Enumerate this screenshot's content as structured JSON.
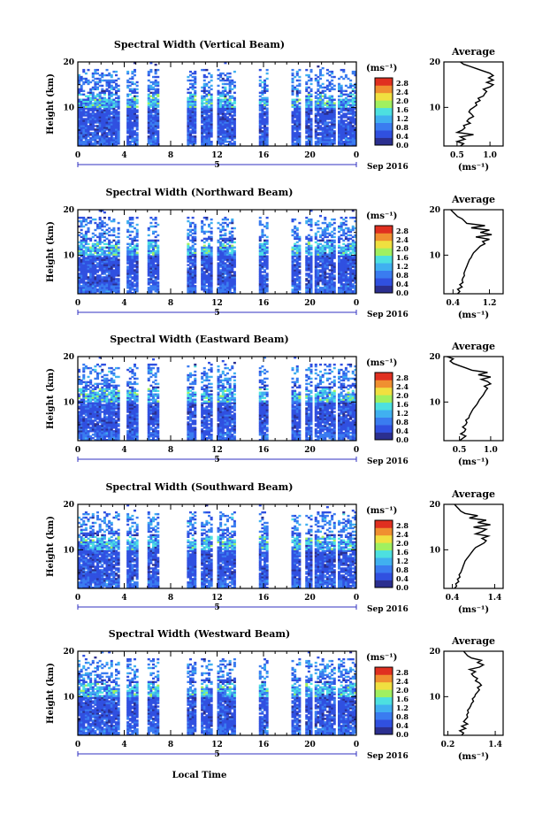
{
  "chart_data": {
    "type": "heatmap",
    "xlabel": "Local Time",
    "date_label": "Sep 2016",
    "day_label": "5",
    "ylabel": "Height (km)",
    "colorbar_unit": "(ms⁻¹)",
    "colorbar_ticks": [
      "2.8",
      "2.4",
      "2.0",
      "1.6",
      "1.2",
      "0.8",
      "0.4",
      "0.0"
    ],
    "x_ticks": [
      "0",
      "4",
      "8",
      "12",
      "16",
      "20",
      "0"
    ],
    "x_range_hours": [
      0,
      24
    ],
    "y_ticks": [
      "20",
      "10"
    ],
    "y_range_km": [
      1.5,
      20
    ],
    "data_gaps_hours": [
      [
        3.6,
        4.2
      ],
      [
        5.2,
        6.0
      ],
      [
        7.1,
        9.5
      ],
      [
        10.2,
        10.6
      ],
      [
        11.6,
        12.1
      ],
      [
        13.6,
        15.6
      ],
      [
        16.4,
        18.4
      ],
      [
        19.2,
        19.6
      ],
      [
        20.2,
        20.5
      ],
      [
        22.1,
        22.4
      ]
    ],
    "panels": [
      {
        "title": "Spectral Width (Vertical Beam)",
        "avg_title": "Average",
        "avg_xlabel": "(ms⁻¹)",
        "avg_x_ticks": [
          "0.5",
          "1.0"
        ],
        "avg_xlim": [
          0.3,
          1.2
        ],
        "avg_profile": {
          "height_km": [
            1.5,
            2,
            2.5,
            3,
            3.5,
            4,
            4.5,
            5,
            5.5,
            6,
            6.5,
            7,
            7.5,
            8,
            8.5,
            9,
            9.5,
            10,
            10.5,
            11,
            11.5,
            12,
            12.5,
            13,
            13.5,
            14,
            14.5,
            15,
            15.5,
            16,
            16.5,
            17,
            17.5,
            18,
            18.5,
            19,
            19.5,
            20
          ],
          "width_ms": [
            0.55,
            0.6,
            0.5,
            0.62,
            0.55,
            0.75,
            0.5,
            0.58,
            0.62,
            0.6,
            0.7,
            0.65,
            0.68,
            0.75,
            0.72,
            0.68,
            0.7,
            0.75,
            0.8,
            0.78,
            0.85,
            0.82,
            0.9,
            0.92,
            0.95,
            0.9,
            1.0,
            1.05,
            0.95,
            1.05,
            0.98,
            1.05,
            1.0,
            0.9,
            0.8,
            0.7,
            0.6,
            0.55
          ]
        }
      },
      {
        "title": "Spectral Width (Northward Beam)",
        "avg_title": "Average",
        "avg_xlabel": "(ms⁻¹)",
        "avg_x_ticks": [
          "0.4",
          "1.2"
        ],
        "avg_xlim": [
          0.2,
          1.5
        ],
        "avg_profile": {
          "height_km": [
            1.5,
            2,
            2.5,
            3,
            3.5,
            4,
            4.5,
            5,
            5.5,
            6,
            6.5,
            7,
            7.5,
            8,
            8.5,
            9,
            9.5,
            10,
            10.5,
            11,
            11.5,
            12,
            12.5,
            13,
            13.5,
            14,
            14.5,
            15,
            15.5,
            16,
            16.5,
            17,
            17.5,
            18,
            18.5,
            19,
            19.5,
            20
          ],
          "width_ms": [
            0.5,
            0.55,
            0.5,
            0.6,
            0.55,
            0.62,
            0.6,
            0.62,
            0.65,
            0.64,
            0.66,
            0.68,
            0.7,
            0.72,
            0.74,
            0.76,
            0.8,
            0.82,
            0.85,
            0.9,
            0.95,
            1.0,
            1.1,
            1.05,
            1.2,
            0.9,
            1.25,
            1.0,
            1.2,
            0.8,
            1.1,
            0.7,
            0.65,
            0.6,
            0.5,
            0.45,
            0.4,
            0.35
          ]
        }
      },
      {
        "title": "Spectral Width (Eastward Beam)",
        "avg_title": "Average",
        "avg_xlabel": "(ms⁻¹)",
        "avg_x_ticks": [
          "0.5",
          "1.0"
        ],
        "avg_xlim": [
          0.25,
          1.2
        ],
        "avg_profile": {
          "height_km": [
            1.5,
            2,
            2.5,
            3,
            3.5,
            4,
            4.5,
            5,
            5.5,
            6,
            6.5,
            7,
            7.5,
            8,
            8.5,
            9,
            9.5,
            10,
            10.5,
            11,
            11.5,
            12,
            12.5,
            13,
            13.5,
            14,
            14.5,
            15,
            15.5,
            16,
            16.5,
            17,
            17.5,
            18,
            18.5,
            19,
            19.5,
            20
          ],
          "width_ms": [
            0.5,
            0.55,
            0.6,
            0.52,
            0.58,
            0.6,
            0.55,
            0.6,
            0.62,
            0.6,
            0.65,
            0.66,
            0.68,
            0.7,
            0.72,
            0.75,
            0.78,
            0.8,
            0.82,
            0.85,
            0.88,
            0.9,
            0.92,
            0.95,
            0.9,
            1.0,
            0.95,
            0.85,
            1.0,
            0.8,
            0.95,
            0.7,
            0.6,
            0.5,
            0.4,
            0.35,
            0.4,
            0.3
          ]
        }
      },
      {
        "title": "Spectral Width (Southward Beam)",
        "avg_title": "Average",
        "avg_xlabel": "(ms⁻¹)",
        "avg_x_ticks": [
          "0.4",
          "1.4"
        ],
        "avg_xlim": [
          0.2,
          1.6
        ],
        "avg_profile": {
          "height_km": [
            1.5,
            2,
            2.5,
            3,
            3.5,
            4,
            4.5,
            5,
            5.5,
            6,
            6.5,
            7,
            7.5,
            8,
            8.5,
            9,
            9.5,
            10,
            10.5,
            11,
            11.5,
            12,
            12.5,
            13,
            13.5,
            14,
            14.5,
            15,
            15.5,
            16,
            16.5,
            17,
            17.5,
            18,
            18.5,
            19,
            19.5,
            20
          ],
          "width_ms": [
            0.45,
            0.5,
            0.48,
            0.55,
            0.52,
            0.58,
            0.56,
            0.6,
            0.62,
            0.64,
            0.66,
            0.68,
            0.7,
            0.74,
            0.78,
            0.82,
            0.86,
            0.9,
            0.95,
            1.05,
            1.15,
            1.2,
            1.1,
            1.25,
            0.95,
            1.1,
            1.2,
            0.9,
            1.3,
            1.0,
            1.2,
            0.8,
            1.0,
            0.7,
            0.6,
            0.55,
            0.5,
            0.45
          ]
        }
      },
      {
        "title": "Spectral Width (Westward Beam)",
        "avg_title": "Average",
        "avg_xlabel": "(ms⁻¹)",
        "avg_x_ticks": [
          "0.2",
          "1.4"
        ],
        "avg_xlim": [
          0.1,
          1.6
        ],
        "avg_profile": {
          "height_km": [
            1.5,
            2,
            2.5,
            3,
            3.5,
            4,
            4.5,
            5,
            5.5,
            6,
            6.5,
            7,
            7.5,
            8,
            8.5,
            9,
            9.5,
            10,
            10.5,
            11,
            11.5,
            12,
            12.5,
            13,
            13.5,
            14,
            14.5,
            15,
            15.5,
            16,
            16.5,
            17,
            17.5,
            18,
            18.5,
            19,
            19.5,
            20
          ],
          "width_ms": [
            0.55,
            0.6,
            0.5,
            0.65,
            0.55,
            0.7,
            0.6,
            0.65,
            0.7,
            0.68,
            0.72,
            0.7,
            0.75,
            0.78,
            0.8,
            0.85,
            0.82,
            0.88,
            0.9,
            0.95,
            1.0,
            0.95,
            1.05,
            1.0,
            0.9,
            0.95,
            0.85,
            0.8,
            0.9,
            0.75,
            1.0,
            1.1,
            0.95,
            1.05,
            0.8,
            0.7,
            0.65,
            0.6
          ]
        }
      }
    ]
  },
  "colors": {
    "colormap": [
      "#2b2f8f",
      "#3050e0",
      "#3a7cf0",
      "#40b0f0",
      "#4de0e0",
      "#a0f060",
      "#f0e040",
      "#f09030",
      "#e03020"
    ],
    "line": "#000000",
    "time_arrow": "#3030c0"
  }
}
